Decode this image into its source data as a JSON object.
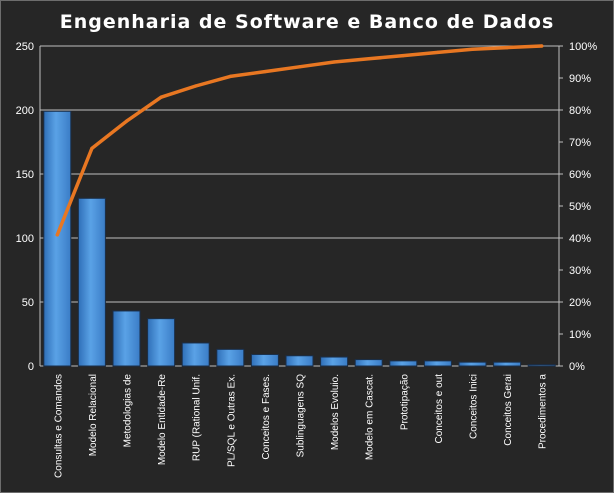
{
  "chart_data": {
    "type": "bar",
    "title": "Engenharia  de  Software  e  Banco  de  Dados",
    "categories": [
      "Consultas e Comandos",
      "Modelo Relacional",
      "Metodologias de",
      "Modelo Entidade-Re",
      "RUP (Rational Unif.",
      "PL/SQL e Outras Ex.",
      "Conceitos e Fases.",
      "Sublinguagens SQ",
      "Modelos Evoluio.",
      "Modelo em Cascat.",
      "Prototipação",
      "Conceitos e out",
      "Conceitos Inici",
      "Conceitos Gerai",
      "Procedimentos a"
    ],
    "series": [
      {
        "type": "bar",
        "values": [
          199,
          131,
          43,
          37,
          18,
          13,
          9,
          8,
          7,
          5,
          4,
          4,
          3,
          3,
          1
        ]
      },
      {
        "type": "line",
        "axis": "right",
        "values": [
          41,
          68,
          76.5,
          84,
          87.5,
          90.5,
          92,
          93.5,
          95,
          96,
          97,
          98,
          99,
          99.5,
          100
        ]
      }
    ],
    "y_left": {
      "min": 0,
      "max": 250,
      "ticks": [
        "0",
        "50",
        "100",
        "150",
        "200",
        "250"
      ]
    },
    "y_right": {
      "min": 0,
      "max": 100,
      "ticks": [
        "0%",
        "10%",
        "20%",
        "30%",
        "40%",
        "50%",
        "60%",
        "70%",
        "80%",
        "90%",
        "100%"
      ]
    },
    "grid": true,
    "legend": "none",
    "colors": {
      "background": "#262626",
      "bar": "#4a8fd6",
      "bar_edge": "#1a2f4a",
      "line": "#e87722",
      "grid": "#bfbfbf",
      "text": "#ffffff"
    }
  }
}
